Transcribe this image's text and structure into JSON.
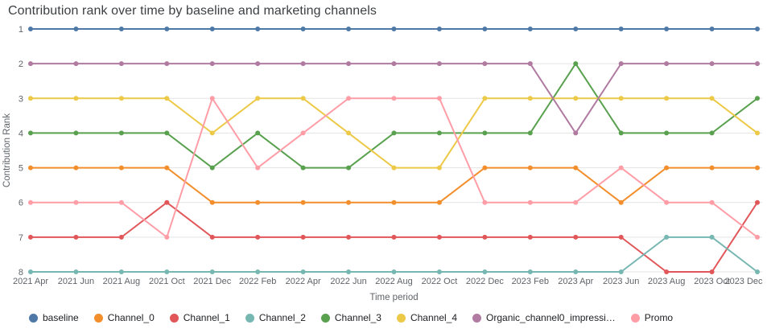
{
  "header": {
    "title": "Contribution rank over time by baseline and marketing channels"
  },
  "chart_data": {
    "type": "line",
    "title": "Contribution rank over time by baseline and marketing channels",
    "xlabel": "Time period",
    "ylabel": "Contribution Rank",
    "legend_position": "bottom",
    "grid": "horizontal",
    "y_axis": {
      "ticks": [
        1,
        2,
        3,
        4,
        5,
        6,
        7,
        8
      ],
      "inverted": true,
      "range": [
        1,
        8
      ]
    },
    "categories": [
      "2021 Apr",
      "2021 Jun",
      "2021 Aug",
      "2021 Oct",
      "2021 Dec",
      "2022 Feb",
      "2022 Apr",
      "2022 Jun",
      "2022 Aug",
      "2022 Oct",
      "2022 Dec",
      "2023 Feb",
      "2023 Apr",
      "2023 Jun",
      "2023 Aug",
      "2023 Oct",
      "2023 Dec"
    ],
    "series": [
      {
        "name": "baseline",
        "color": "#4e79a7",
        "values": [
          1,
          1,
          1,
          1,
          1,
          1,
          1,
          1,
          1,
          1,
          1,
          1,
          1,
          1,
          1,
          1,
          1
        ]
      },
      {
        "name": "Channel_0",
        "color": "#f28e2c",
        "values": [
          5,
          5,
          5,
          5,
          6,
          6,
          6,
          6,
          6,
          6,
          5,
          5,
          5,
          6,
          5,
          5,
          5
        ]
      },
      {
        "name": "Channel_1",
        "color": "#e15759",
        "values": [
          7,
          7,
          7,
          6,
          7,
          7,
          7,
          7,
          7,
          7,
          7,
          7,
          7,
          7,
          8,
          8,
          6
        ]
      },
      {
        "name": "Channel_2",
        "color": "#76b7b2",
        "values": [
          8,
          8,
          8,
          8,
          8,
          8,
          8,
          8,
          8,
          8,
          8,
          8,
          8,
          8,
          7,
          7,
          8
        ]
      },
      {
        "name": "Channel_3",
        "color": "#59a14f",
        "values": [
          4,
          4,
          4,
          4,
          5,
          4,
          5,
          5,
          4,
          4,
          4,
          4,
          2,
          4,
          4,
          4,
          3
        ]
      },
      {
        "name": "Channel_4",
        "color": "#edc948",
        "values": [
          3,
          3,
          3,
          3,
          4,
          3,
          3,
          4,
          5,
          5,
          3,
          3,
          3,
          3,
          3,
          3,
          4
        ]
      },
      {
        "name": "Organic_channel0_impressi…",
        "color": "#b07aa1",
        "values": [
          2,
          2,
          2,
          2,
          2,
          2,
          2,
          2,
          2,
          2,
          2,
          2,
          4,
          2,
          2,
          2,
          2
        ]
      },
      {
        "name": "Promo",
        "color": "#ff9da7",
        "values": [
          6,
          6,
          6,
          7,
          3,
          5,
          4,
          3,
          3,
          3,
          6,
          6,
          6,
          5,
          6,
          6,
          7
        ]
      }
    ],
    "style": {
      "gridline_color": "#e3e3e3",
      "axis_text_color": "#5f6368",
      "title_color": "#3c4043"
    }
  }
}
